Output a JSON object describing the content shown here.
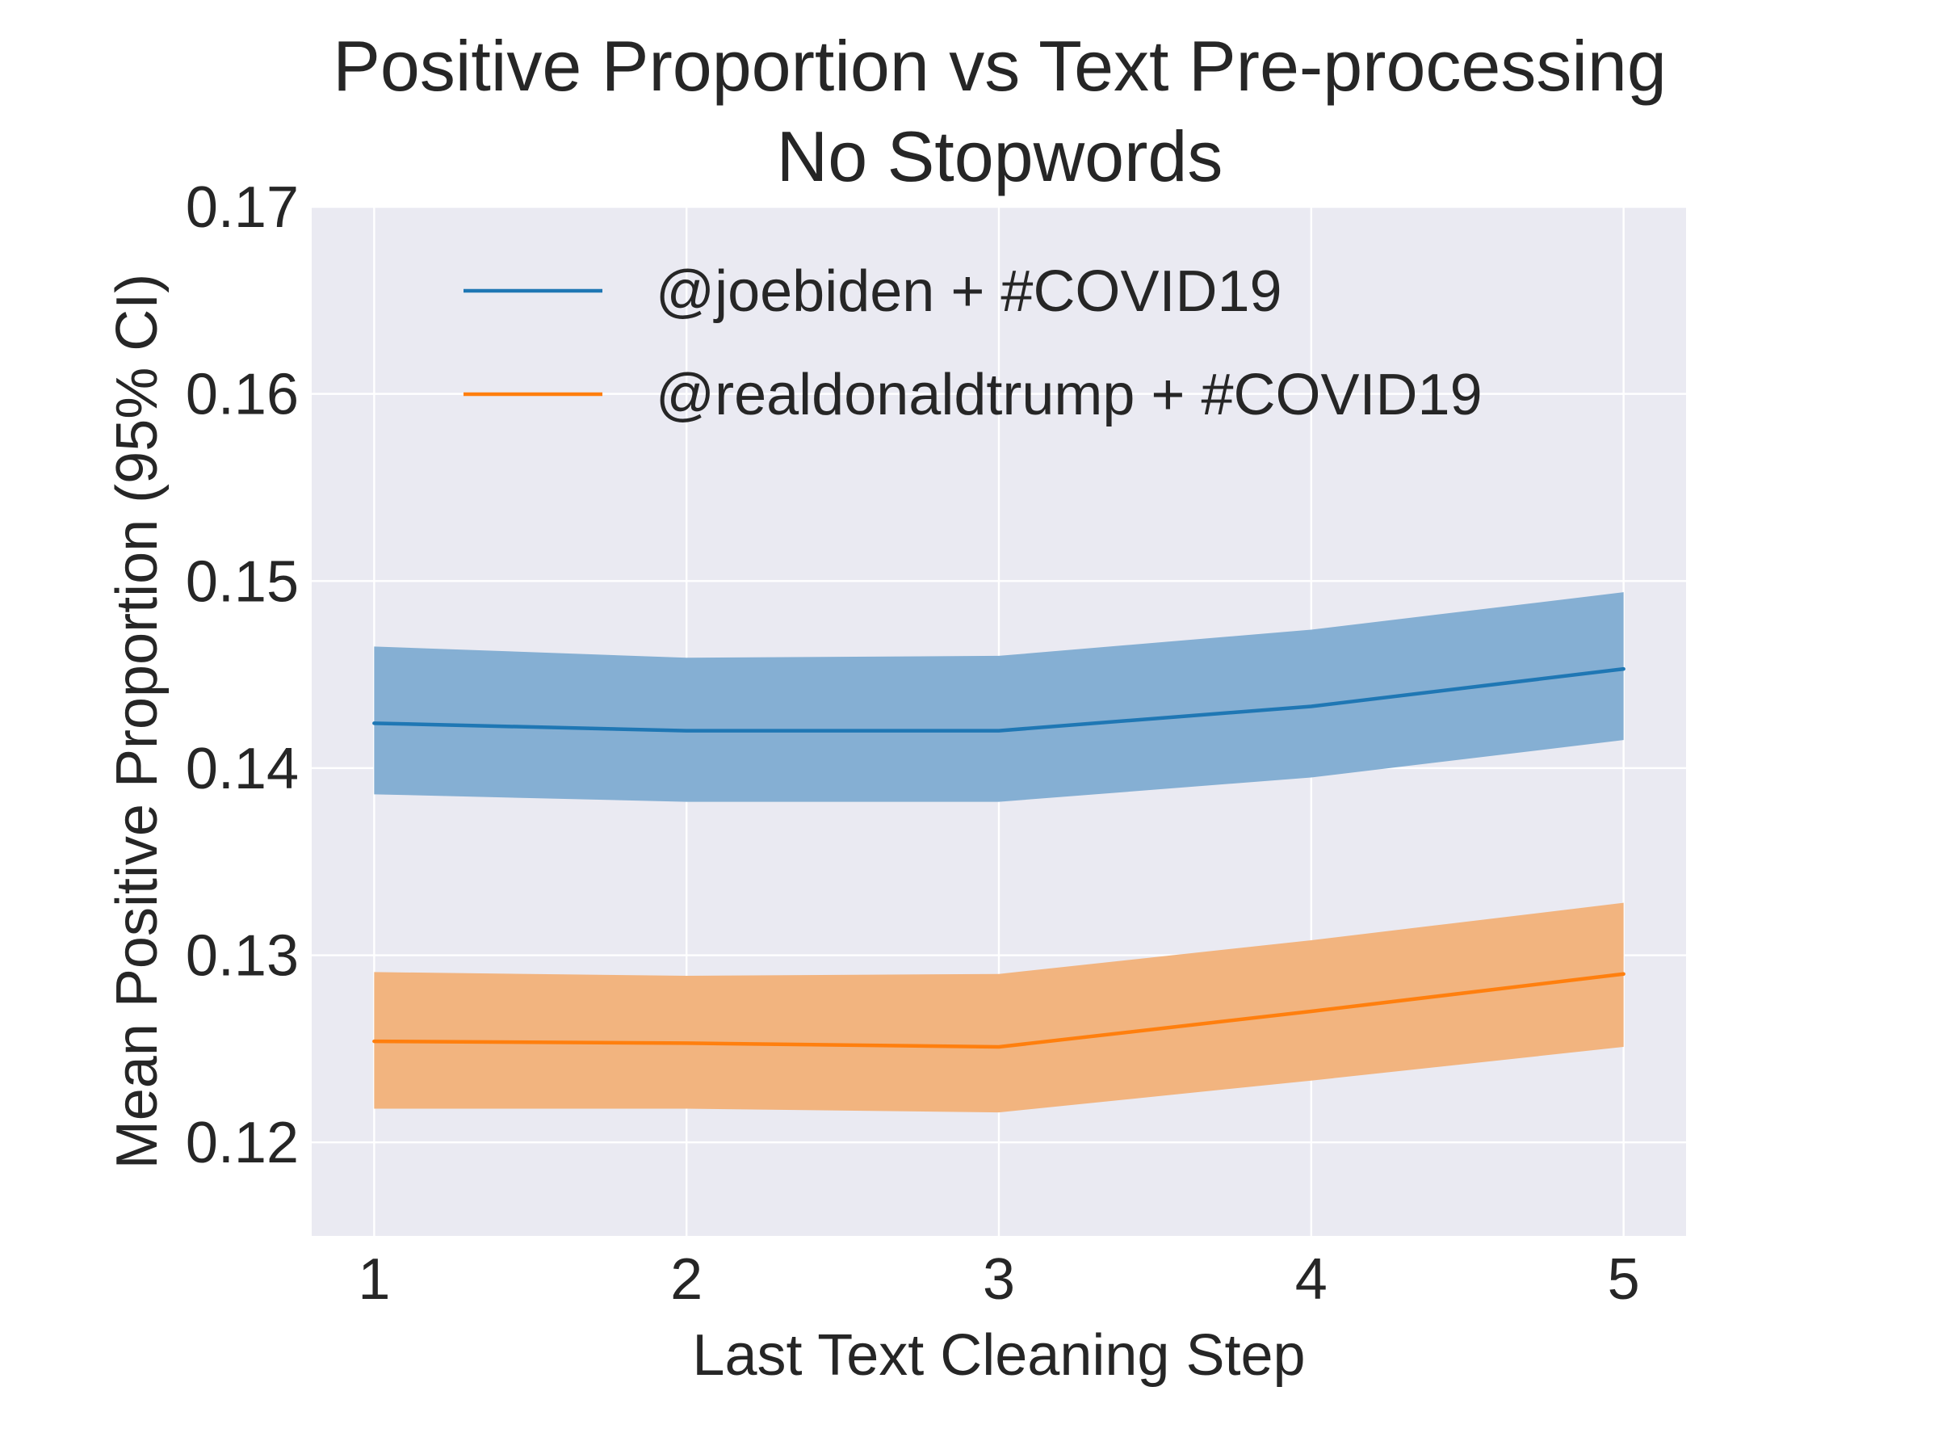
{
  "chart_data": {
    "type": "line",
    "title": "Positive Proportion vs Text Pre-processing",
    "subtitle": "No Stopwords",
    "xlabel": "Last Text Cleaning Step",
    "ylabel": "Mean Positive Proportion (95% CI)",
    "x": [
      1,
      2,
      3,
      4,
      5
    ],
    "x_ticks": [
      "1",
      "2",
      "3",
      "4",
      "5"
    ],
    "xlim": [
      0.8,
      5.2
    ],
    "ylim": [
      0.115,
      0.17
    ],
    "y_ticks": [
      "0.12",
      "0.13",
      "0.14",
      "0.15",
      "0.16",
      "0.17"
    ],
    "grid": true,
    "legend_position": "top-center",
    "series": [
      {
        "name": "@joebiden + #COVID19",
        "color": "#1f77b4",
        "band_color": "#85afd3",
        "values": [
          0.1424,
          0.142,
          0.142,
          0.1433,
          0.1453
        ],
        "ci_lower": [
          0.1386,
          0.1382,
          0.1382,
          0.1395,
          0.1415
        ],
        "ci_upper": [
          0.1465,
          0.1459,
          0.146,
          0.1474,
          0.1494
        ]
      },
      {
        "name": "@realdonaldtrump + #COVID19",
        "color": "#ff7f0e",
        "band_color": "#f2b47f",
        "values": [
          0.1254,
          0.1253,
          0.1251,
          0.127,
          0.129
        ],
        "ci_lower": [
          0.1218,
          0.1218,
          0.1216,
          0.1233,
          0.1251
        ],
        "ci_upper": [
          0.1291,
          0.1289,
          0.129,
          0.1308,
          0.1328
        ]
      }
    ]
  }
}
